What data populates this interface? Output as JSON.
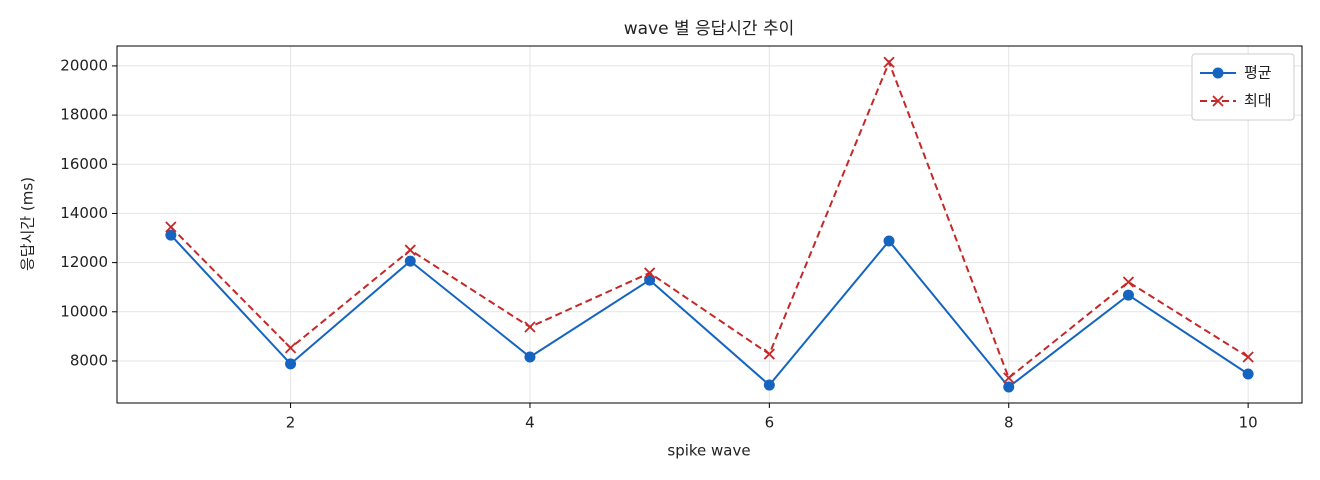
{
  "chart_data": {
    "type": "line",
    "title": "wave 별 응답시간 추이",
    "x_label": "spike wave",
    "y_label": "응답시간 (ms)",
    "x": [
      1,
      2,
      3,
      4,
      5,
      6,
      7,
      8,
      9,
      10
    ],
    "series": [
      {
        "name": "평균",
        "color": "#1565c0",
        "marker": "o",
        "linestyle": "solid",
        "values": [
          13120,
          7880,
          12060,
          8160,
          11290,
          7020,
          12880,
          6940,
          10680,
          7470
        ]
      },
      {
        "name": "최대",
        "color": "#c62828",
        "marker": "x",
        "linestyle": "dashed",
        "values": [
          13450,
          8530,
          12510,
          9380,
          11580,
          8280,
          20150,
          7310,
          11210,
          8160
        ]
      }
    ],
    "xlim": [
      0.55,
      10.45
    ],
    "xticks": [
      2,
      4,
      6,
      8,
      10
    ],
    "ylim": [
      6290,
      20810
    ],
    "yticks": [
      8000,
      10000,
      12000,
      14000,
      16000,
      18000,
      20000
    ],
    "grid": true,
    "legend": "upper right"
  }
}
